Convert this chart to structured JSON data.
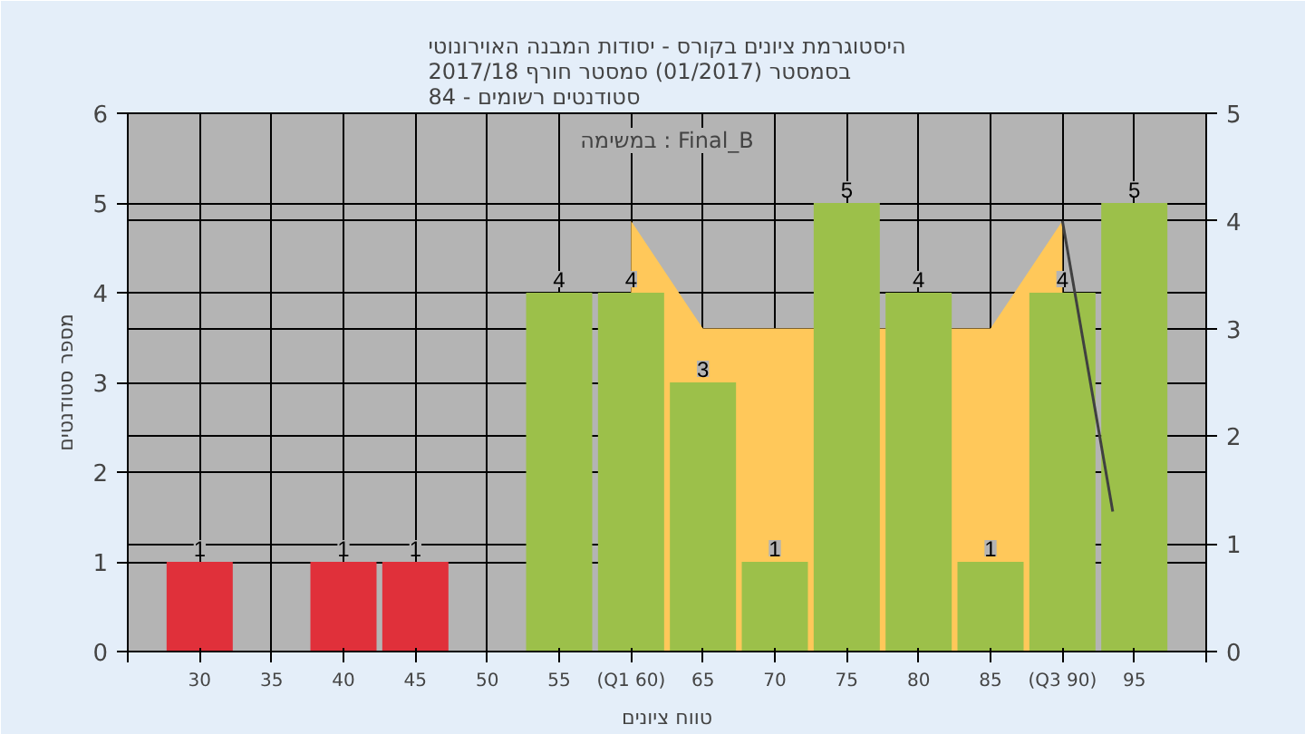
{
  "chart_data": {
    "type": "bar",
    "title": "היסטוגרמת ציונים בקורס - יסודות המבנה האוירונוטי\nבסמסטר  (01/2017)  סמסטר חורף 2017/18\nסטודנטים רשומים - 84",
    "xlabel": "טווח ציונים",
    "ylabel": "מספר סטודנטים",
    "annotations": [
      "במשימה : Final_B"
    ],
    "x": [
      30,
      40,
      45,
      55,
      60,
      65,
      70,
      75,
      80,
      85,
      90,
      95
    ],
    "series": [
      {
        "value_labels": [
          "1",
          "1",
          "1",
          "4",
          "4",
          "3",
          "1",
          "5",
          "4",
          "1",
          "4",
          "5"
        ],
        "colors": [
          "#e0303a",
          "#e0303a",
          "#e0303a",
          "#9cc04a",
          "#9cc04a",
          "#9cc04a",
          "#9cc04a",
          "#9cc04a",
          "#9cc04a",
          "#9cc04a",
          "#9cc04a",
          "#9cc04a"
        ],
        "values": [
          1,
          1,
          1,
          4,
          4,
          3,
          1,
          5,
          4,
          1,
          4,
          5
        ]
      },
      {
        "type": "area",
        "axis": "y2",
        "color": "#ffc85a",
        "x": [
          60,
          65,
          85,
          90
        ],
        "values": [
          4,
          3,
          3,
          4
        ]
      },
      {
        "type": "line",
        "axis": "y2",
        "color": "#404040",
        "x": [
          90,
          93.5
        ],
        "values": [
          4,
          1.3
        ]
      }
    ],
    "xlim": [
      25,
      100
    ],
    "xticks": [
      {
        "value": 25,
        "label": null
      },
      {
        "value": 30,
        "label": "30"
      },
      {
        "value": 35,
        "label": "35"
      },
      {
        "value": 40,
        "label": "40"
      },
      {
        "value": 45,
        "label": "45"
      },
      {
        "value": 50,
        "label": "50"
      },
      {
        "value": 55,
        "label": "55"
      },
      {
        "value": 60,
        "label": "(Q1 60)"
      },
      {
        "value": 65,
        "label": "65"
      },
      {
        "value": 70,
        "label": "70"
      },
      {
        "value": 75,
        "label": "75"
      },
      {
        "value": 80,
        "label": "80"
      },
      {
        "value": 85,
        "label": "85"
      },
      {
        "value": 90,
        "label": "(Q3 90)"
      },
      {
        "value": 95,
        "label": "95"
      },
      {
        "value": 100,
        "label": null
      }
    ],
    "ylim": [
      0,
      6
    ],
    "yticks": [
      0,
      1,
      2,
      3,
      4,
      5,
      6
    ],
    "y2lim": [
      0,
      5
    ],
    "y2ticks": [
      0,
      1,
      2,
      3,
      4,
      5
    ],
    "grid": true
  }
}
